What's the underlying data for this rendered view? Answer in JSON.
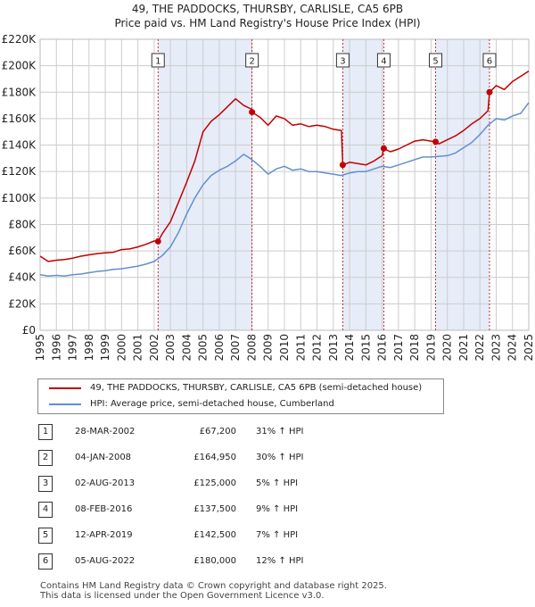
{
  "title": "49, THE PADDOCKS, THURSBY, CARLISLE, CA5 6PB",
  "subtitle": "Price paid vs. HM Land Registry's House Price Index (HPI)",
  "colors": {
    "property": "#c00000",
    "hpi": "#6090d0",
    "shade": "#e6ecf8",
    "grid": "#cccccc",
    "marker": "#c00000"
  },
  "chart_data": {
    "type": "line",
    "title": "49, THE PADDOCKS, THURSBY, CARLISLE, CA5 6PB",
    "subtitle": "Price paid vs. HM Land Registry's House Price Index (HPI)",
    "xlim": [
      1995,
      2025
    ],
    "ylim": [
      0,
      220000
    ],
    "y_ticks": [
      "£0",
      "£20K",
      "£40K",
      "£60K",
      "£80K",
      "£100K",
      "£120K",
      "£140K",
      "£160K",
      "£180K",
      "£200K",
      "£220K"
    ],
    "x_ticks": [
      "1995",
      "1996",
      "1997",
      "1998",
      "1999",
      "2000",
      "2001",
      "2002",
      "2003",
      "2004",
      "2005",
      "2006",
      "2007",
      "2008",
      "2009",
      "2010",
      "2011",
      "2012",
      "2013",
      "2014",
      "2015",
      "2016",
      "2017",
      "2018",
      "2019",
      "2020",
      "2021",
      "2022",
      "2023",
      "2024",
      "2025"
    ],
    "grid": true,
    "legend_position": "bottom",
    "series": [
      {
        "name": "49, THE PADDOCKS, THURSBY, CARLISLE, CA5 6PB (semi-detached house)",
        "x": [
          1995.0,
          1995.5,
          1996.0,
          1996.5,
          1997.0,
          1997.5,
          1998.0,
          1998.5,
          1999.0,
          1999.5,
          2000.0,
          2000.5,
          2001.0,
          2001.5,
          2002.0,
          2002.24,
          2002.5,
          2003.0,
          2003.5,
          2004.0,
          2004.5,
          2005.0,
          2005.5,
          2006.0,
          2006.5,
          2007.0,
          2007.5,
          2008.0,
          2008.01,
          2008.5,
          2009.0,
          2009.5,
          2010.0,
          2010.5,
          2011.0,
          2011.5,
          2012.0,
          2012.5,
          2013.0,
          2013.5,
          2013.58,
          2014.0,
          2014.5,
          2015.0,
          2015.5,
          2016.0,
          2016.1,
          2016.5,
          2017.0,
          2017.5,
          2018.0,
          2018.5,
          2019.0,
          2019.28,
          2019.5,
          2020.0,
          2020.5,
          2021.0,
          2021.5,
          2022.0,
          2022.5,
          2022.59,
          2023.0,
          2023.5,
          2024.0,
          2024.5,
          2025.0
        ],
        "y": [
          56000,
          52000,
          53000,
          53500,
          54500,
          56000,
          57000,
          58000,
          58500,
          59000,
          61000,
          61500,
          63000,
          65000,
          67500,
          67200,
          73000,
          82000,
          97000,
          112000,
          128000,
          150000,
          158000,
          163000,
          169000,
          175000,
          170000,
          167000,
          164950,
          161000,
          155000,
          162000,
          160000,
          155000,
          156000,
          154000,
          155000,
          154000,
          152000,
          151000,
          125000,
          127000,
          126000,
          125000,
          128000,
          132000,
          137500,
          135000,
          137000,
          140000,
          143000,
          144000,
          143000,
          142500,
          141000,
          144000,
          147000,
          151000,
          156000,
          160000,
          166000,
          180000,
          185000,
          182000,
          188000,
          192000,
          196000
        ]
      },
      {
        "name": "HPI: Average price, semi-detached house, Cumberland",
        "x": [
          1995.0,
          1995.5,
          1996.0,
          1996.5,
          1997.0,
          1997.5,
          1998.0,
          1998.5,
          1999.0,
          1999.5,
          2000.0,
          2000.5,
          2001.0,
          2001.5,
          2002.0,
          2002.5,
          2003.0,
          2003.5,
          2004.0,
          2004.5,
          2005.0,
          2005.5,
          2006.0,
          2006.5,
          2007.0,
          2007.5,
          2008.0,
          2008.5,
          2009.0,
          2009.5,
          2010.0,
          2010.5,
          2011.0,
          2011.5,
          2012.0,
          2012.5,
          2013.0,
          2013.5,
          2014.0,
          2014.5,
          2015.0,
          2015.5,
          2016.0,
          2016.5,
          2017.0,
          2017.5,
          2018.0,
          2018.5,
          2019.0,
          2019.5,
          2020.0,
          2020.5,
          2021.0,
          2021.5,
          2022.0,
          2022.5,
          2023.0,
          2023.5,
          2024.0,
          2024.5,
          2025.0
        ],
        "y": [
          42000,
          41000,
          41500,
          41000,
          42000,
          42500,
          43500,
          44500,
          45000,
          46000,
          46500,
          47500,
          48500,
          50000,
          52000,
          56500,
          63000,
          74000,
          88000,
          100000,
          110000,
          117000,
          121000,
          124000,
          128000,
          133000,
          129000,
          124000,
          118000,
          122000,
          124000,
          121000,
          122000,
          120000,
          120000,
          119000,
          118000,
          117000,
          119000,
          120000,
          120000,
          122000,
          124000,
          123000,
          125000,
          127000,
          129000,
          131000,
          131000,
          131500,
          132000,
          134000,
          138000,
          142000,
          148000,
          155000,
          160000,
          159000,
          162000,
          164000,
          172000
        ]
      }
    ],
    "transactions": [
      {
        "id": "1",
        "x": 2002.24,
        "date": "28-MAR-2002",
        "price": 67200,
        "price_label": "£67,200",
        "hpi": "31% ↑ HPI"
      },
      {
        "id": "2",
        "x": 2008.01,
        "date": "04-JAN-2008",
        "price": 164950,
        "price_label": "£164,950",
        "hpi": "30% ↑ HPI"
      },
      {
        "id": "3",
        "x": 2013.58,
        "date": "02-AUG-2013",
        "price": 125000,
        "price_label": "£125,000",
        "hpi": "5% ↑ HPI"
      },
      {
        "id": "4",
        "x": 2016.1,
        "date": "08-FEB-2016",
        "price": 137500,
        "price_label": "£137,500",
        "hpi": "9% ↑ HPI"
      },
      {
        "id": "5",
        "x": 2019.28,
        "date": "12-APR-2019",
        "price": 142500,
        "price_label": "£142,500",
        "hpi": "7% ↑ HPI"
      },
      {
        "id": "6",
        "x": 2022.59,
        "date": "05-AUG-2022",
        "price": 180000,
        "price_label": "£180,000",
        "hpi": "12% ↑ HPI"
      }
    ],
    "shaded_periods": [
      [
        2002.24,
        2008.01
      ],
      [
        2013.58,
        2016.1
      ],
      [
        2019.28,
        2022.59
      ]
    ]
  },
  "legend": {
    "property_label": "49, THE PADDOCKS, THURSBY, CARLISLE, CA5 6PB (semi-detached house)",
    "hpi_label": "HPI: Average price, semi-detached house, Cumberland"
  },
  "footer": {
    "line1": "Contains HM Land Registry data © Crown copyright and database right 2025.",
    "line2": "This data is licensed under the Open Government Licence v3.0."
  }
}
